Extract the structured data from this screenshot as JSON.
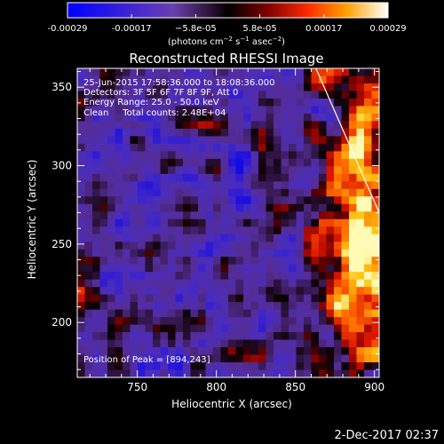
{
  "chart_data": {
    "type": "heatmap",
    "title": "Reconstructed RHESSI Image",
    "xlabel": "Heliocentric X (arcsec)",
    "ylabel": "Heliocentric Y (arcsec)",
    "xlim": [
      712,
      903
    ],
    "ylim": [
      165,
      362
    ],
    "xticks": [
      750,
      800,
      850,
      900
    ],
    "yticks": [
      200,
      250,
      300,
      350
    ],
    "colorbar": {
      "ticks": [
        "-0.00029",
        "-0.00017",
        "−5.8e-05",
        "5.8e-05",
        "0.00017",
        "0.00029"
      ],
      "range": [
        -0.00029,
        0.00029
      ],
      "unit_parts": [
        "(photons cm",
        "−2",
        " s",
        "−1",
        " asec",
        "−2",
        ")"
      ]
    },
    "annotations": [
      "25-Jun-2015 17:58:36.000 to 18:08:36.000",
      "Detectors: 3F 5F 6F 7F 8F 9F, Att 0",
      "Energy Range: 25.0 - 50.0 keV",
      "Clean     Total counts: 2.48E+04"
    ],
    "peak_label": "Position of Peak = [894,243]",
    "peak": [
      894,
      243
    ],
    "limb_line": [
      [
        863,
        362
      ],
      [
        903,
        270
      ]
    ],
    "grid": false
  },
  "footer": {
    "date": "2-Dec-2017 02:37"
  }
}
